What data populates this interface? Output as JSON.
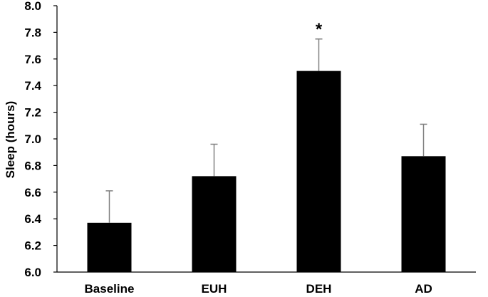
{
  "chart_data": {
    "type": "bar",
    "title": "",
    "xlabel": "",
    "ylabel": "Sleep (hours)",
    "ylim": [
      6.0,
      8.0
    ],
    "yticks": [
      "6.0",
      "6.2",
      "6.4",
      "6.6",
      "6.8",
      "7.0",
      "7.2",
      "7.4",
      "7.6",
      "7.8",
      "8.0"
    ],
    "categories": [
      "Baseline",
      "EUH",
      "DEH",
      "AD"
    ],
    "values": [
      6.37,
      6.72,
      7.51,
      6.87
    ],
    "error_upper": [
      0.24,
      0.24,
      0.24,
      0.24
    ],
    "annotations": [
      "",
      "",
      "*",
      ""
    ],
    "grid": false,
    "colors": {
      "bar": "#000000",
      "axis": "#000000",
      "error": "#808080"
    }
  }
}
